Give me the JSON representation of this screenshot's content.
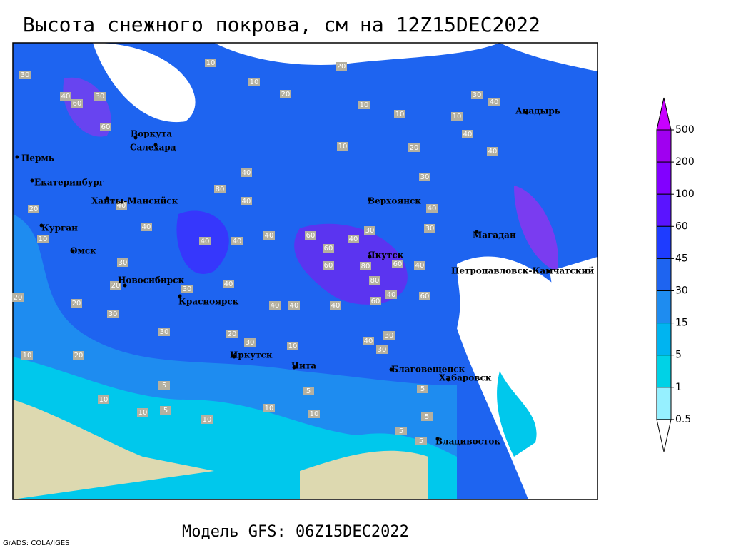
{
  "title": "Высота снежного покрова, см на 12Z15DEC2022",
  "footer": "Модель GFS: 06Z15DEC2022",
  "credit": "GrADS: COLA/IGES",
  "cities": [
    "Воркута",
    "Салехард",
    "Пермь",
    "Екатеринбург",
    "Ханты-Мансийск",
    "Курган",
    "Омск",
    "Новосибирск",
    "Красноярск",
    "Иркутск",
    "Чита",
    "Верхоянск",
    "Якутск",
    "Магадан",
    "Петропавловск-Камчатский",
    "Анадырь",
    "Благовещенск",
    "Хабаровск",
    "Владивосток"
  ],
  "contour_labels": [
    30,
    40,
    60,
    30,
    60,
    10,
    10,
    20,
    20,
    10,
    10,
    10,
    10,
    30,
    40,
    40,
    40,
    20,
    40,
    80,
    40,
    40,
    40,
    40,
    40,
    60,
    60,
    40,
    30,
    30,
    40,
    30,
    60,
    80,
    80,
    60,
    40,
    40,
    60,
    60,
    40,
    40,
    40,
    40,
    30,
    30,
    20,
    20,
    30,
    20,
    30,
    20,
    30,
    10,
    40,
    30,
    30,
    20,
    10,
    10,
    10,
    5,
    10,
    10,
    5,
    5,
    5,
    5,
    5,
    10,
    20,
    40,
    5,
    10
  ],
  "colorbar": {
    "levels": [
      500,
      200,
      100,
      60,
      45,
      30,
      15,
      5,
      1,
      0.5
    ],
    "colors": [
      "#c800ff",
      "#a000f0",
      "#8200ff",
      "#5a14ff",
      "#1e3cff",
      "#1e64f0",
      "#1e8cf0",
      "#00b4f0",
      "#00d2e6",
      "#96f0ff",
      "#ffffff"
    ]
  }
}
